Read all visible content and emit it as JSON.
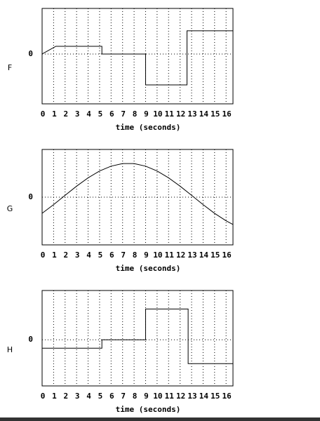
{
  "chart_data": [
    {
      "type": "line",
      "label": "F",
      "xlabel": "time (seconds)",
      "color": "#000000",
      "grid": true,
      "x": [
        0,
        1.2,
        5.2,
        5.2,
        9,
        9,
        12.6,
        12.6,
        16.6
      ],
      "values": [
        0,
        1,
        1,
        0,
        0,
        -4,
        -4,
        3,
        3
      ],
      "xlim": [
        0,
        16.6
      ],
      "xticks": [
        0,
        1,
        2,
        3,
        4,
        5,
        6,
        7,
        8,
        9,
        10,
        11,
        12,
        13,
        14,
        15,
        16
      ],
      "ylim": [
        -6.45,
        5.9
      ],
      "yticks": [
        0
      ]
    },
    {
      "type": "line",
      "label": "G",
      "xlabel": "time (seconds)",
      "color": "#000000",
      "grid": true,
      "x": [
        0,
        1,
        2,
        3,
        4,
        5,
        6,
        7,
        8,
        9,
        10,
        11,
        12,
        13,
        14,
        15,
        16,
        16.6
      ],
      "values": [
        -2.1,
        -0.97,
        0.24,
        1.43,
        2.51,
        3.4,
        4.03,
        4.36,
        4.36,
        4.03,
        3.4,
        2.51,
        1.43,
        0.24,
        -0.97,
        -2.1,
        -3.07,
        -3.55
      ],
      "xlim": [
        0,
        16.6
      ],
      "xticks": [
        0,
        1,
        2,
        3,
        4,
        5,
        6,
        7,
        8,
        9,
        10,
        11,
        12,
        13,
        14,
        15,
        16
      ],
      "ylim": [
        -6.2,
        6.2
      ],
      "yticks": [
        0
      ]
    },
    {
      "type": "line",
      "label": "H",
      "xlabel": "time (seconds)",
      "color": "#000000",
      "grid": true,
      "x": [
        0,
        5.2,
        5.2,
        9,
        9,
        12.7,
        12.7,
        16.6
      ],
      "values": [
        -1.1,
        -1.1,
        0,
        0,
        4,
        4,
        -3.1,
        -3.1
      ],
      "xlim": [
        0,
        16.6
      ],
      "xticks": [
        0,
        1,
        2,
        3,
        4,
        5,
        6,
        7,
        8,
        9,
        10,
        11,
        12,
        13,
        14,
        15,
        16
      ],
      "ylim": [
        -6.0,
        6.4
      ],
      "yticks": [
        0
      ]
    }
  ]
}
